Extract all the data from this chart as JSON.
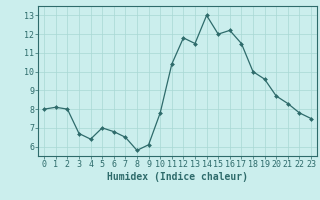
{
  "x": [
    0,
    1,
    2,
    3,
    4,
    5,
    6,
    7,
    8,
    9,
    10,
    11,
    12,
    13,
    14,
    15,
    16,
    17,
    18,
    19,
    20,
    21,
    22,
    23
  ],
  "y": [
    8.0,
    8.1,
    8.0,
    6.7,
    6.4,
    7.0,
    6.8,
    6.5,
    5.8,
    6.1,
    7.8,
    10.4,
    11.8,
    11.5,
    13.0,
    12.0,
    12.2,
    11.5,
    10.0,
    9.6,
    8.7,
    8.3,
    7.8,
    7.5
  ],
  "xlabel": "Humidex (Indice chaleur)",
  "line_color": "#2e6b6b",
  "marker_color": "#2e6b6b",
  "background_color": "#cbeeed",
  "grid_color": "#a8d8d4",
  "xlim": [
    -0.5,
    23.5
  ],
  "ylim": [
    5.5,
    13.5
  ],
  "yticks": [
    6,
    7,
    8,
    9,
    10,
    11,
    12,
    13
  ],
  "xticks": [
    0,
    1,
    2,
    3,
    4,
    5,
    6,
    7,
    8,
    9,
    10,
    11,
    12,
    13,
    14,
    15,
    16,
    17,
    18,
    19,
    20,
    21,
    22,
    23
  ],
  "tick_color": "#2e6b6b",
  "label_fontsize": 7.0,
  "tick_fontsize": 6.0
}
